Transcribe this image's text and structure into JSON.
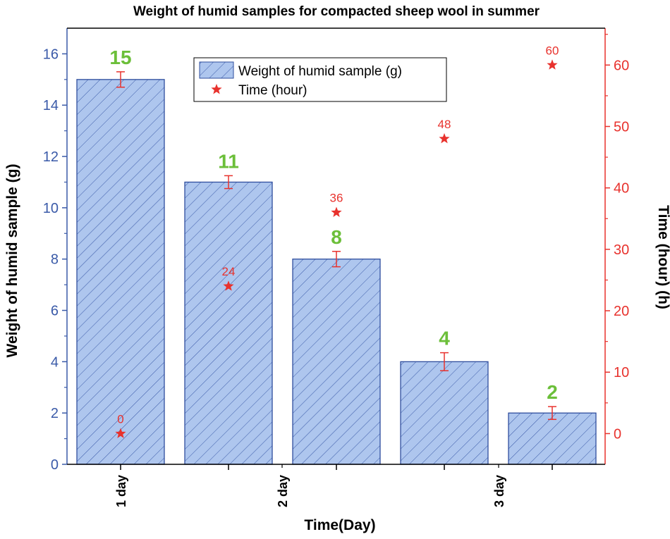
{
  "chart_data": {
    "type": "bar",
    "title": "Weight of humid samples for compacted sheep wool in summer",
    "xlabel": "Time(Day)",
    "ylabel_left": "Weight of humid sample (g)",
    "ylabel_right": "Time (hour) (h)",
    "ylim_left": [
      0,
      17
    ],
    "ylim_right": [
      -5,
      66
    ],
    "yticks_left": [
      "0",
      "2",
      "4",
      "6",
      "8",
      "10",
      "12",
      "14",
      "16"
    ],
    "yticks_right": [
      "0",
      "10",
      "20",
      "30",
      "40",
      "50",
      "60"
    ],
    "x_tick_labels": [
      "1 day",
      "2 day",
      "3 day"
    ],
    "series": [
      {
        "name": "Weight of humid sample (g)",
        "kind": "bar",
        "axis": "left",
        "values": [
          15,
          11,
          8,
          4,
          2
        ],
        "labels": [
          "15",
          "11",
          "8",
          "4",
          "2"
        ],
        "error": [
          0.3,
          0.25,
          0.3,
          0.35,
          0.25
        ]
      },
      {
        "name": "Time (hour)",
        "kind": "scatter",
        "axis": "right",
        "values": [
          0,
          24,
          36,
          48,
          60
        ],
        "labels": [
          "0",
          "24",
          "36",
          "48",
          "60"
        ]
      }
    ],
    "legend_position": "top-center",
    "colors": {
      "bar_fill": "#aec6ee",
      "bar_edge": "#2f4e9e",
      "hatch": "#3a5aa8",
      "left_axis": "#3a5aa8",
      "right_axis": "#e8322d",
      "bar_label": "#6cbf3a",
      "star": "#e8322d"
    }
  }
}
